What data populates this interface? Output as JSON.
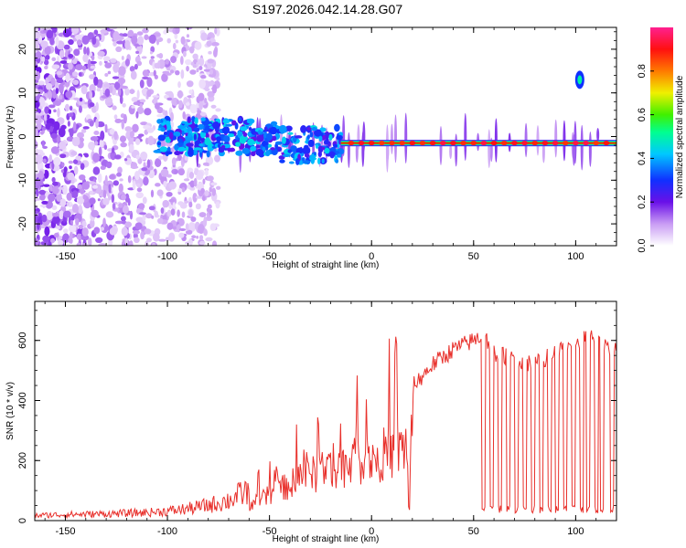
{
  "title": "S197.2026.042.14.28.G07",
  "chart_data": [
    {
      "type": "heatmap",
      "xlabel": "Height of straight line (km)",
      "ylabel": "Frequency (Hz)",
      "xlim": [
        -165,
        120
      ],
      "ylim": [
        -25,
        25
      ],
      "xticks": [
        -150,
        -100,
        -50,
        0,
        50,
        100
      ],
      "yticks": [
        -20,
        -10,
        0,
        10,
        20
      ],
      "colorbar": {
        "label": "Normalized spectral amplitude",
        "range": [
          0.0,
          1.0
        ],
        "ticks": [
          "0.0",
          "0.2",
          "0.4",
          "0.6",
          "0.8"
        ]
      },
      "features": [
        {
          "name": "noise-scatter",
          "x_range": [
            -165,
            -75
          ],
          "freq_range": [
            -25,
            25
          ],
          "amplitude": [
            0.0,
            0.2
          ]
        },
        {
          "name": "emerging-signal",
          "x_range": [
            -105,
            -15
          ],
          "freq_range": [
            -4,
            4
          ],
          "amplitude": [
            0.2,
            0.45
          ]
        },
        {
          "name": "signal-line",
          "x_range": [
            -15,
            120
          ],
          "freq_center": -1.5,
          "amplitude": [
            0.4,
            1.0
          ]
        },
        {
          "name": "side-blob",
          "x": 102,
          "freq_center": 13,
          "amplitude": 0.5
        }
      ]
    },
    {
      "type": "line",
      "title": "",
      "xlabel": "Height of straight line (km)",
      "ylabel": "SNR (10 * v/v)",
      "xlim": [
        -165,
        120
      ],
      "ylim": [
        0,
        730
      ],
      "xticks": [
        -150,
        -100,
        -50,
        0,
        50,
        100
      ],
      "yticks": [
        0,
        200,
        400,
        600
      ],
      "color": "#e8302b",
      "x": [
        -165,
        -150,
        -130,
        -110,
        -100,
        -90,
        -80,
        -70,
        -60,
        -50,
        -40,
        -30,
        -20,
        -10,
        0,
        10,
        18,
        20,
        30,
        40,
        50,
        55,
        60,
        70,
        80,
        90,
        100,
        110,
        120
      ],
      "y": [
        15,
        18,
        20,
        24,
        28,
        35,
        45,
        60,
        90,
        140,
        200,
        250,
        290,
        320,
        350,
        380,
        420,
        445,
        520,
        570,
        600,
        620,
        560,
        540,
        520,
        560,
        600,
        610,
        560
      ],
      "dropouts": [
        18,
        55,
        59,
        63,
        67,
        71,
        75,
        79,
        83,
        87,
        91,
        95,
        99,
        103,
        106,
        110,
        113,
        118
      ]
    }
  ]
}
